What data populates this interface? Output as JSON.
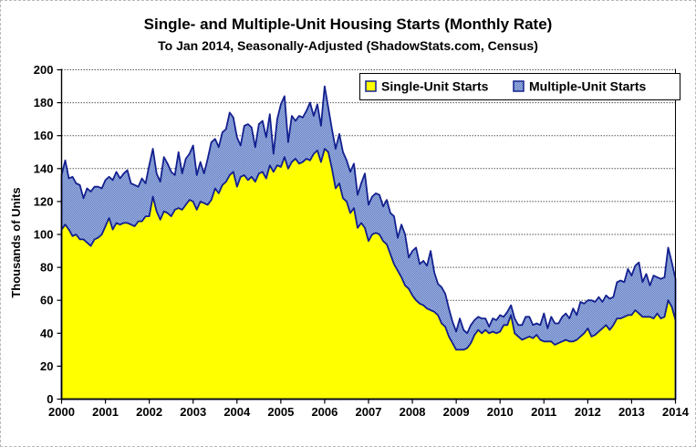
{
  "title": "Single- and Multiple-Unit Housing Starts (Monthly Rate)",
  "subtitle": "To Jan 2014, Seasonally-Adjusted (ShadowStats.com, Census)",
  "colors": {
    "single_fill": "#ffff00",
    "multi_fill_dark": "#5f7ec5",
    "multi_fill_light": "#a6b6e0",
    "line": "#13208f",
    "axis": "#000000",
    "gridline": "#555555",
    "background": "#ffffff"
  },
  "chart_data": {
    "type": "area",
    "stacked": true,
    "title": "Single- and Multiple-Unit Housing Starts (Monthly Rate)",
    "subtitle": "To Jan 2014, Seasonally-Adjusted (ShadowStats.com, Census)",
    "xlabel": "",
    "ylabel": "Thousands of Units",
    "ylim": [
      0,
      200
    ],
    "y_tick_step": 20,
    "y_tick_labels": [
      "0",
      "20",
      "40",
      "60",
      "80",
      "100",
      "120",
      "140",
      "160",
      "180",
      "200"
    ],
    "x_tick_labels": [
      "2000",
      "2001",
      "2002",
      "2003",
      "2004",
      "2005",
      "2006",
      "2007",
      "2008",
      "2009",
      "2010",
      "2011",
      "2012",
      "2013",
      "2014"
    ],
    "x_start": "Jan 2000",
    "x_end": "Jan 2014",
    "months_per_tick": 12,
    "grid": "horizontal-dotted",
    "legend_position": "top-right",
    "series": [
      {
        "name": "Single-Unit Starts",
        "values": [
          103,
          106,
          103,
          99,
          100,
          97,
          97,
          95,
          93,
          97,
          98,
          100,
          105,
          110,
          103,
          107,
          106,
          107,
          107,
          106,
          105,
          108,
          108,
          111,
          111,
          123,
          114,
          109,
          114,
          113,
          111,
          115,
          116,
          115,
          118,
          121,
          120,
          115,
          120,
          119,
          118,
          121,
          128,
          125,
          130,
          132,
          136,
          138,
          129,
          135,
          136,
          133,
          135,
          132,
          137,
          138,
          134,
          142,
          138,
          142,
          141,
          147,
          140,
          144,
          146,
          143,
          144,
          146,
          145,
          149,
          151,
          144,
          152,
          150,
          140,
          128,
          131,
          122,
          120,
          113,
          116,
          104,
          107,
          104,
          96,
          100,
          101,
          100,
          96,
          94,
          88,
          82,
          78,
          74,
          69,
          67,
          63,
          60,
          58,
          57,
          55,
          54,
          53,
          51,
          46,
          44,
          38,
          34,
          30,
          30,
          30,
          31,
          34,
          39,
          42,
          40,
          42,
          40,
          41,
          40,
          41,
          45,
          45,
          51,
          40,
          38,
          36,
          37,
          38,
          37,
          39,
          36,
          35,
          35,
          35,
          33,
          34,
          35,
          36,
          35,
          35,
          36,
          38,
          40,
          43,
          38,
          39,
          41,
          43,
          45,
          42,
          45,
          49,
          49,
          50,
          51,
          51,
          54,
          52,
          50,
          50,
          50,
          49,
          52,
          49,
          50,
          60,
          56,
          48
        ]
      },
      {
        "name": "Multiple-Unit Starts",
        "values": [
          33,
          39,
          31,
          36,
          31,
          33,
          25,
          33,
          33,
          32,
          31,
          28,
          28,
          25,
          30,
          31,
          28,
          30,
          32,
          25,
          25,
          21,
          26,
          20,
          31,
          29,
          23,
          23,
          33,
          30,
          27,
          21,
          34,
          22,
          28,
          28,
          34,
          21,
          24,
          18,
          28,
          35,
          30,
          28,
          32,
          32,
          38,
          33,
          30,
          19,
          30,
          34,
          30,
          21,
          30,
          31,
          25,
          31,
          11,
          28,
          38,
          37,
          16,
          28,
          23,
          29,
          27,
          29,
          35,
          23,
          28,
          22,
          38,
          27,
          24,
          24,
          30,
          28,
          25,
          25,
          27,
          20,
          24,
          33,
          22,
          23,
          24,
          24,
          21,
          27,
          25,
          29,
          20,
          32,
          31,
          19,
          27,
          32,
          24,
          27,
          26,
          36,
          24,
          19,
          22,
          20,
          17,
          13,
          11,
          19,
          12,
          9,
          11,
          9,
          8,
          9,
          7,
          4,
          8,
          8,
          10,
          5,
          8,
          6,
          9,
          7,
          9,
          13,
          12,
          8,
          7,
          9,
          17,
          8,
          15,
          13,
          12,
          15,
          16,
          14,
          20,
          15,
          21,
          18,
          17,
          22,
          20,
          21,
          16,
          18,
          19,
          17,
          22,
          23,
          21,
          28,
          24,
          27,
          31,
          21,
          26,
          19,
          26,
          22,
          24,
          24,
          32,
          27,
          25
        ]
      }
    ]
  }
}
